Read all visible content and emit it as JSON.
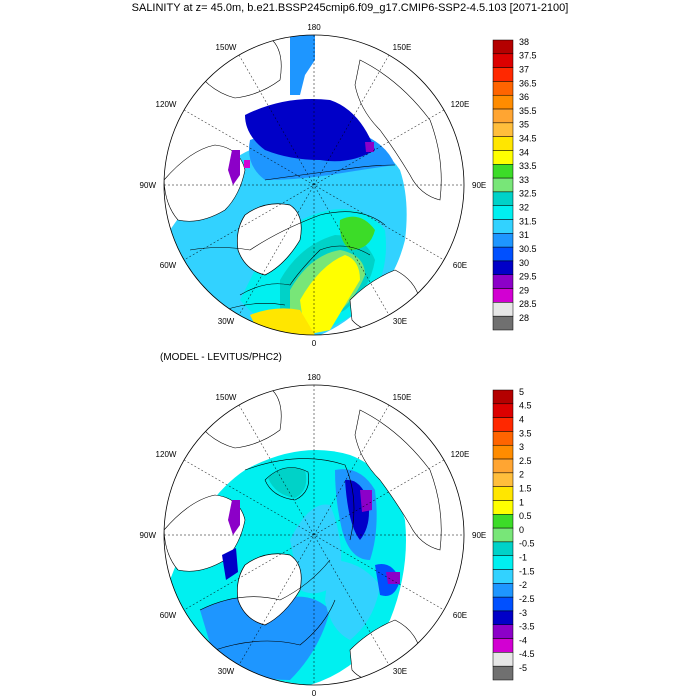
{
  "title": "SALINITY at z=  45.0m, b.e21.BSSP245cmip6.f09_g17.CMIP6-SSP2-4.5.103 [2071-2100]",
  "subtitle": "(MODEL - LEVITUS/PHC2)",
  "longitude_labels": {
    "top": "180",
    "ne": "150E",
    "e1": "120E",
    "e": "90E",
    "se1": "60E",
    "se": "30E",
    "bottom": "0",
    "sw": "30W",
    "w1": "60W",
    "w": "90W",
    "nw1": "120W",
    "nw": "150W"
  },
  "colorbar_top": {
    "labels": [
      "38",
      "37.5",
      "37",
      "36.5",
      "36",
      "35.5",
      "35",
      "34.5",
      "34",
      "33.5",
      "33",
      "32.5",
      "32",
      "31.5",
      "31",
      "30.5",
      "30",
      "29.5",
      "29",
      "28.5",
      "28"
    ],
    "colors": [
      "#b40000",
      "#dc0000",
      "#ff2800",
      "#ff6400",
      "#ff8c00",
      "#ffa532",
      "#ffbe3c",
      "#ffe600",
      "#ffff00",
      "#3cdc28",
      "#78e678",
      "#00d2c8",
      "#00f0f0",
      "#32d2ff",
      "#1e96ff",
      "#0050ff",
      "#0000c8",
      "#8c00c8",
      "#d200d2",
      "#e6e6e6",
      "#707070"
    ]
  },
  "colorbar_bottom": {
    "labels": [
      "5",
      "4.5",
      "4",
      "3.5",
      "3",
      "2.5",
      "2",
      "1.5",
      "1",
      "0.5",
      "0",
      "-0.5",
      "-1",
      "-1.5",
      "-2",
      "-2.5",
      "-3",
      "-3.5",
      "-4",
      "-4.5",
      "-5"
    ],
    "colors": [
      "#b40000",
      "#dc0000",
      "#ff2800",
      "#ff6400",
      "#ff8c00",
      "#ffa532",
      "#ffbe3c",
      "#ffe600",
      "#ffff00",
      "#3cdc28",
      "#78e678",
      "#00d2c8",
      "#00f0f0",
      "#32d2ff",
      "#1e96ff",
      "#0050ff",
      "#0000c8",
      "#8c00c8",
      "#d200d2",
      "#e6e6e6",
      "#707070"
    ]
  }
}
